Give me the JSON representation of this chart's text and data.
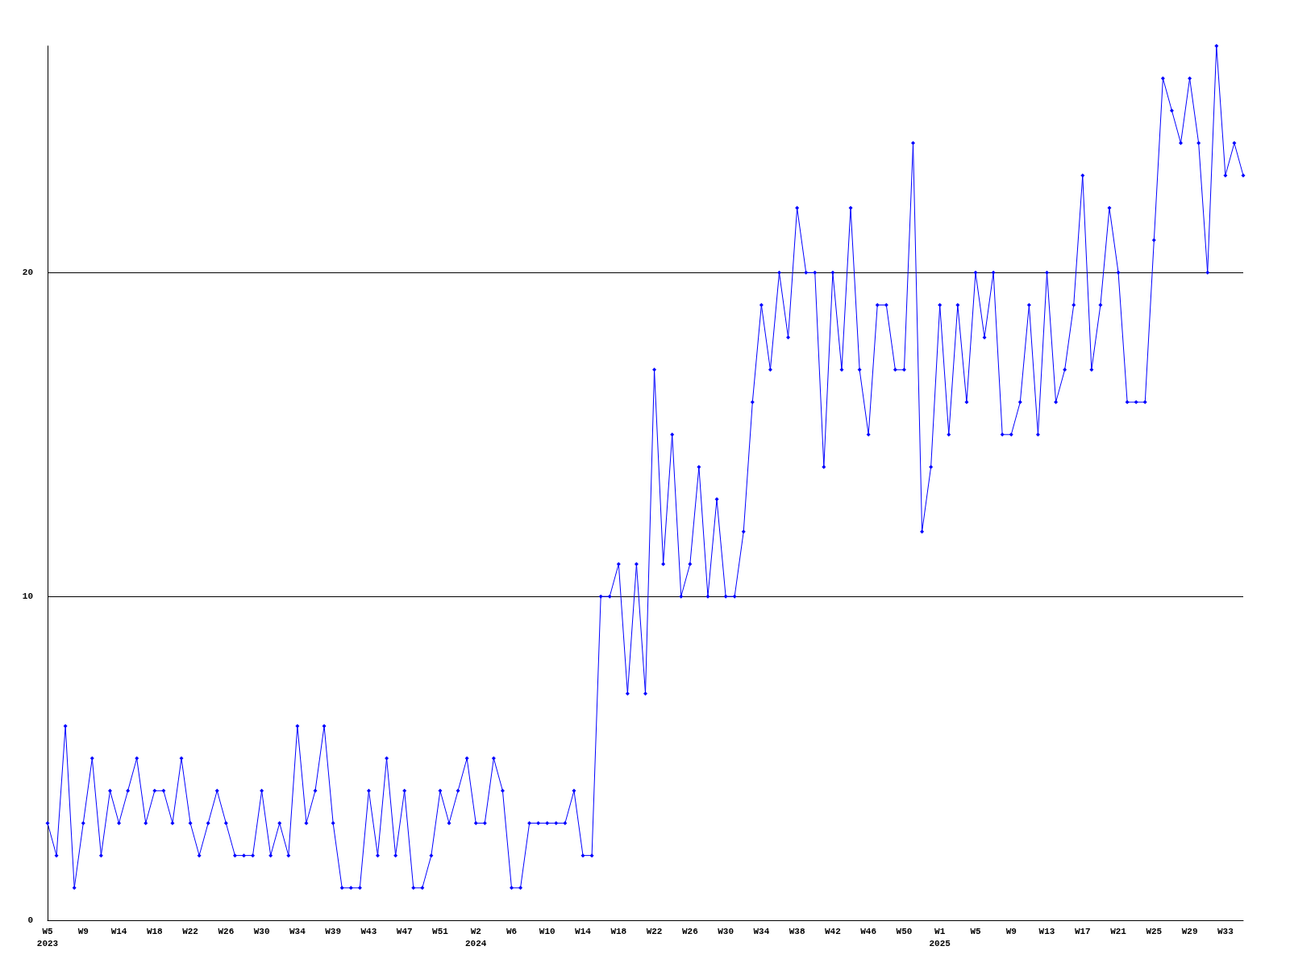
{
  "chart_data": {
    "type": "line",
    "categories": [
      "W5\n2023",
      null,
      null,
      null,
      "W9",
      null,
      null,
      null,
      "W14",
      null,
      null,
      null,
      "W18",
      null,
      null,
      null,
      "W22",
      null,
      null,
      null,
      "W26",
      null,
      null,
      null,
      "W30",
      null,
      null,
      null,
      "W34",
      null,
      null,
      null,
      "W39",
      null,
      null,
      null,
      "W43",
      null,
      null,
      null,
      "W47",
      null,
      null,
      null,
      "W51",
      null,
      null,
      null,
      "W2\n2024",
      null,
      null,
      null,
      "W6",
      null,
      null,
      null,
      "W10",
      null,
      null,
      null,
      "W14",
      null,
      null,
      null,
      "W18",
      null,
      null,
      null,
      "W22",
      null,
      null,
      null,
      "W26",
      null,
      null,
      null,
      "W30",
      null,
      null,
      null,
      "W34",
      null,
      null,
      null,
      "W38",
      null,
      null,
      null,
      "W42",
      null,
      null,
      null,
      "W46",
      null,
      null,
      null,
      "W50",
      null,
      null,
      null,
      "W1\n2025",
      null,
      null,
      null,
      "W5",
      null,
      null,
      null,
      "W9",
      null,
      null,
      null,
      "W13",
      null,
      null,
      null,
      "W17",
      null,
      null,
      null,
      "W21",
      null,
      null,
      null,
      "W25",
      null,
      null,
      null,
      "W29",
      null,
      null,
      null,
      "W33",
      null,
      null
    ],
    "series": [
      {
        "color": "#0000ff",
        "values": [
          3,
          2,
          6,
          1,
          3,
          5,
          2,
          4,
          3,
          4,
          5,
          3,
          4,
          4,
          3,
          5,
          3,
          2,
          3,
          4,
          3,
          2,
          2,
          2,
          4,
          2,
          3,
          2,
          6,
          3,
          4,
          6,
          3,
          1,
          1,
          1,
          4,
          2,
          5,
          2,
          4,
          1,
          1,
          2,
          4,
          3,
          4,
          5,
          3,
          3,
          5,
          4,
          1,
          1,
          3,
          3,
          3,
          3,
          3,
          4,
          2,
          2,
          10,
          10,
          11,
          7,
          11,
          7,
          17,
          11,
          15,
          10,
          11,
          14,
          10,
          13,
          10,
          10,
          12,
          16,
          19,
          17,
          20,
          18,
          22,
          20,
          20,
          14,
          20,
          17,
          22,
          17,
          15,
          19,
          19,
          17,
          17,
          24,
          12,
          14,
          19,
          15,
          19,
          16,
          20,
          18,
          20,
          15,
          15,
          16,
          19,
          15,
          20,
          16,
          17,
          19,
          23,
          17,
          19,
          22,
          20,
          16,
          16,
          16,
          21,
          26,
          25,
          24,
          26,
          24,
          20,
          27,
          23,
          24,
          23
        ]
      }
    ],
    "ylim": [
      0,
      27
    ],
    "yticks": [
      0,
      10,
      20
    ],
    "grid": "y",
    "marker": "diamond",
    "line_style": "solid"
  }
}
